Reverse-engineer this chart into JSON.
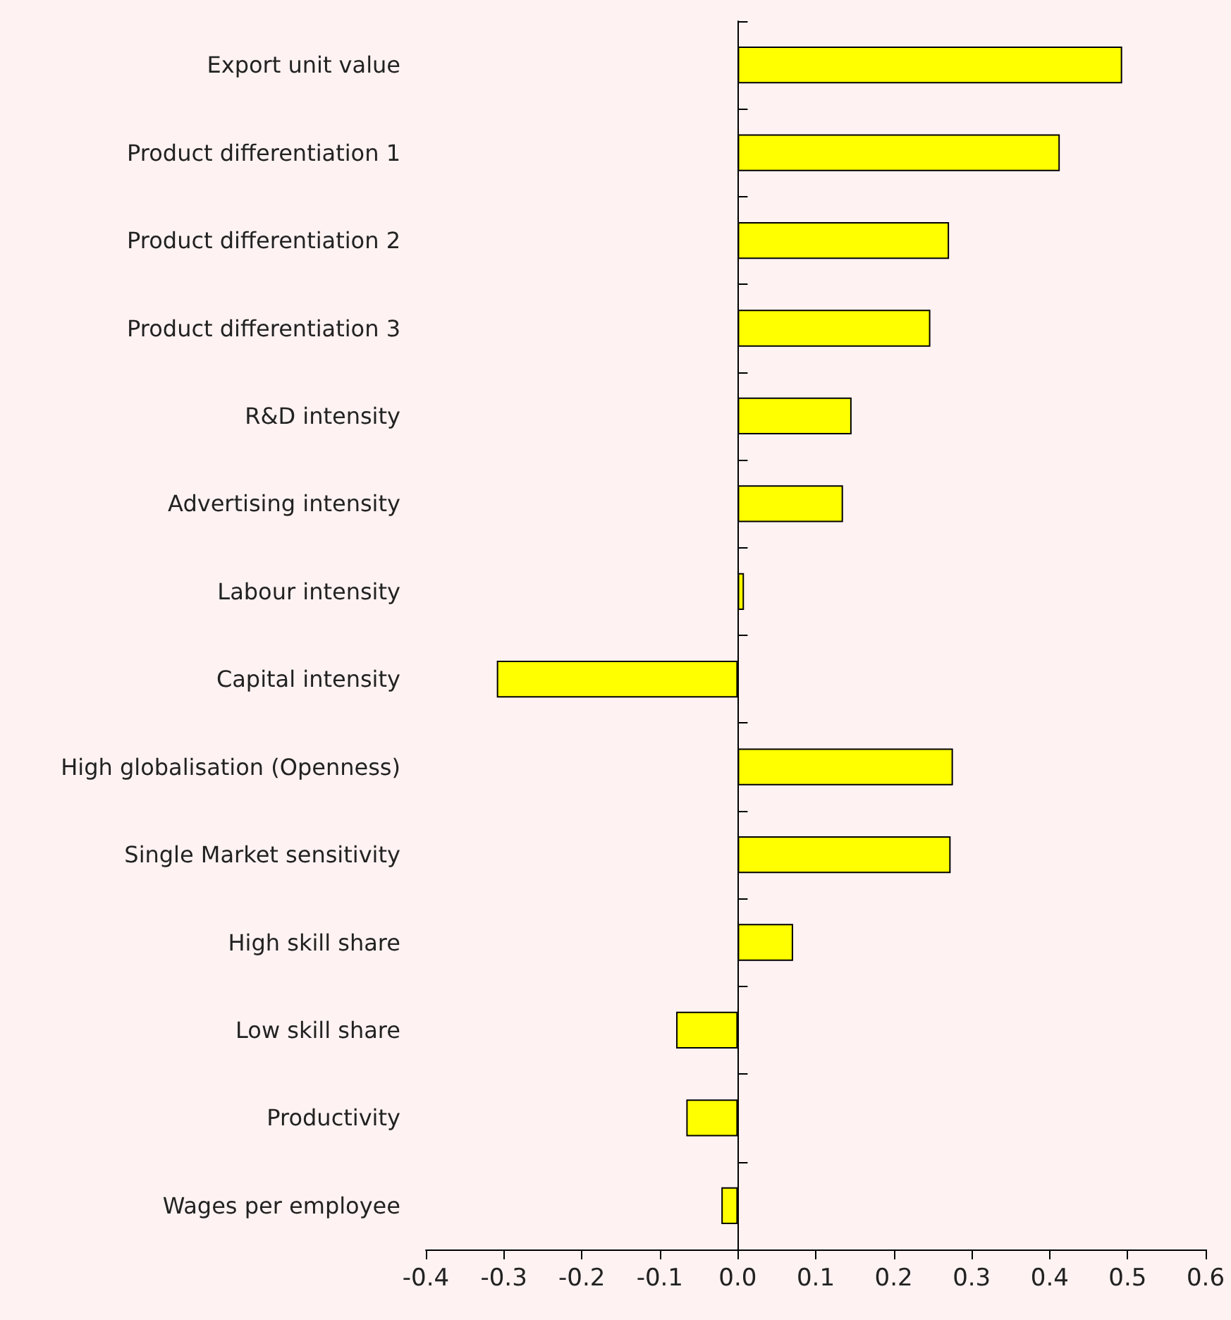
{
  "chart_data": {
    "type": "bar",
    "orientation": "horizontal",
    "categories": [
      "Export unit value",
      "Product differentiation 1",
      "Product differentiation 2",
      "Product differentiation 3",
      "R&D intensity",
      "Advertising intensity",
      "Labour intensity",
      "Capital intensity",
      "High globalisation (Openness)",
      "Single Market sensitivity",
      "High skill share",
      "Low skill share",
      "Productivity",
      "Wages per employee"
    ],
    "values": [
      0.493,
      0.413,
      0.271,
      0.247,
      0.146,
      0.135,
      0.008,
      -0.309,
      0.276,
      0.273,
      0.071,
      -0.079,
      -0.066,
      -0.021
    ],
    "color": "#ffff00",
    "xlim": [
      -0.4,
      0.6
    ],
    "xticks": [
      -0.4,
      -0.3,
      -0.2,
      -0.1,
      {
        "value": 0,
        "label": "0.0"
      },
      0.1,
      0.2,
      0.3,
      0.4,
      0.5,
      0.6
    ]
  }
}
